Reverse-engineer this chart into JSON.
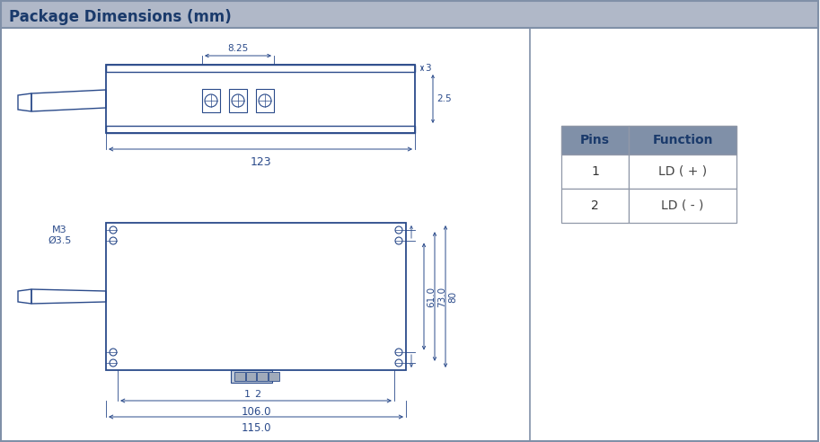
{
  "title": "Package Dimensions (mm)",
  "title_color": "#1a3a6b",
  "title_bg": "#b0b8c8",
  "bg_color": "#ffffff",
  "border_color": "#8090a8",
  "drawing_color": "#2a4a8a",
  "table_header_bg": "#8090a8",
  "table_header_color": "#1a3a6b",
  "table_border_color": "#9098a8",
  "pins": [
    "1",
    "2"
  ],
  "functions": [
    "LD ( + )",
    "LD ( - )"
  ]
}
